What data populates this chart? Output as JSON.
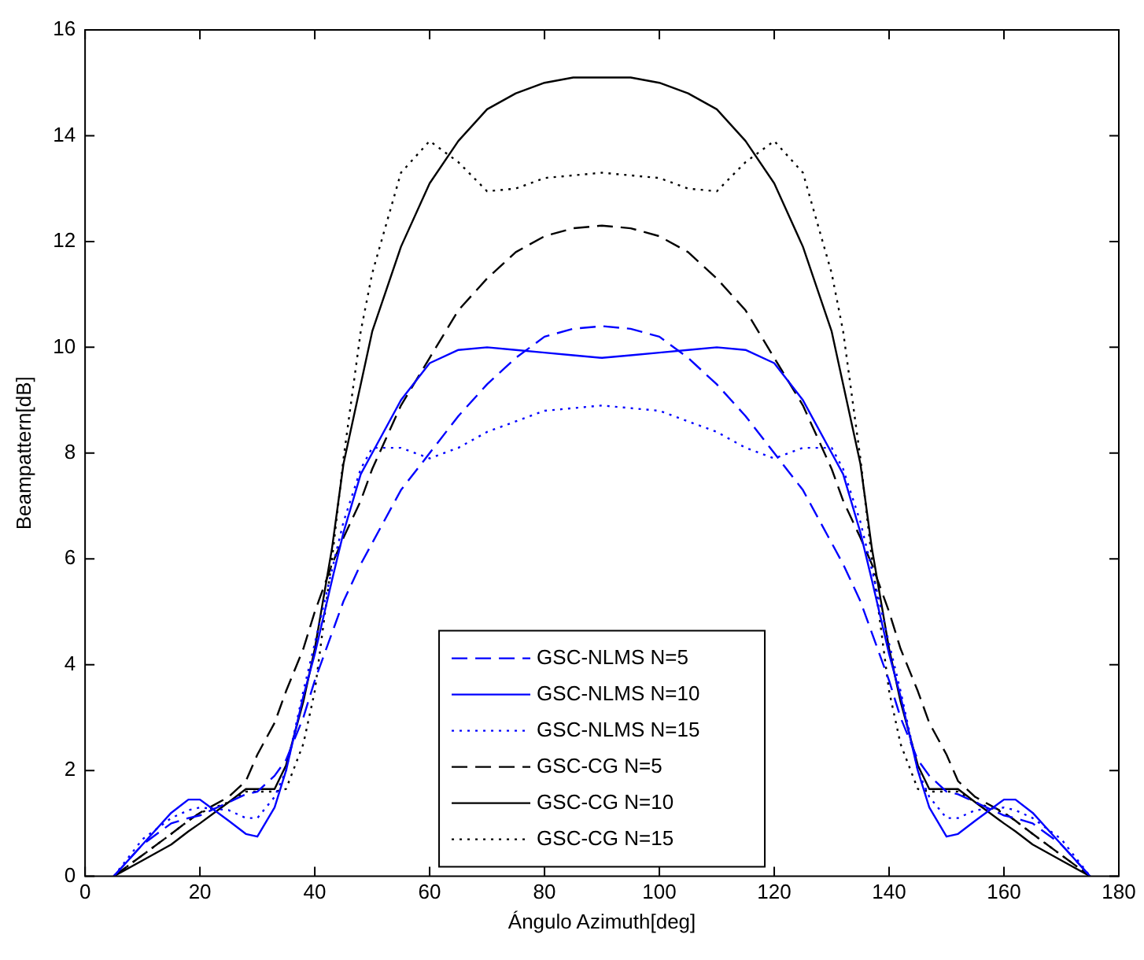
{
  "chart_data": {
    "type": "line",
    "xlabel": "Ángulo Azimuth[deg]",
    "ylabel": "Beampattern[dB]",
    "x": [
      5,
      10,
      15,
      18,
      20,
      25,
      28,
      30,
      33,
      35,
      38,
      40,
      43,
      45,
      48,
      50,
      55,
      60,
      65,
      70,
      75,
      80,
      85,
      90,
      95,
      100,
      105,
      110,
      115,
      120,
      125,
      130,
      132,
      135,
      137,
      140,
      142,
      145,
      147,
      150,
      152,
      155,
      160,
      162,
      165,
      170,
      175
    ],
    "series": [
      {
        "name": "GSC-NLMS N=5",
        "color": "#0000ff",
        "line_style": "dashed",
        "values": [
          0,
          0.6,
          1.0,
          1.1,
          1.15,
          1.4,
          1.55,
          1.6,
          1.9,
          2.2,
          3.0,
          3.7,
          4.6,
          5.2,
          5.9,
          6.3,
          7.3,
          8.0,
          8.7,
          9.3,
          9.8,
          10.2,
          10.35,
          10.4,
          10.35,
          10.2,
          9.8,
          9.3,
          8.7,
          8.0,
          7.3,
          6.3,
          5.9,
          5.2,
          4.6,
          3.7,
          3.0,
          2.2,
          1.9,
          1.6,
          1.55,
          1.4,
          1.15,
          1.1,
          1.0,
          0.6,
          0
        ]
      },
      {
        "name": "GSC-NLMS N=10",
        "color": "#0000ff",
        "line_style": "solid",
        "values": [
          0,
          0.6,
          1.2,
          1.45,
          1.45,
          1.05,
          0.8,
          0.75,
          1.3,
          2.0,
          3.4,
          4.2,
          5.6,
          6.5,
          7.6,
          8.0,
          9.0,
          9.7,
          9.95,
          10.0,
          9.95,
          9.9,
          9.85,
          9.8,
          9.85,
          9.9,
          9.95,
          10.0,
          9.95,
          9.7,
          9.0,
          8.0,
          7.6,
          6.5,
          5.6,
          4.2,
          3.4,
          2.0,
          1.3,
          0.75,
          0.8,
          1.05,
          1.45,
          1.45,
          1.2,
          0.6,
          0
        ]
      },
      {
        "name": "GSC-NLMS N=15",
        "color": "#0000ff",
        "line_style": "dotted",
        "values": [
          0,
          0.7,
          1.1,
          1.25,
          1.3,
          1.25,
          1.1,
          1.1,
          1.5,
          2.0,
          3.5,
          4.4,
          5.8,
          6.7,
          7.7,
          8.1,
          8.1,
          7.9,
          8.1,
          8.4,
          8.6,
          8.8,
          8.85,
          8.9,
          8.85,
          8.8,
          8.6,
          8.4,
          8.1,
          7.9,
          8.1,
          8.1,
          7.7,
          6.7,
          5.8,
          4.4,
          3.5,
          2.0,
          1.5,
          1.1,
          1.1,
          1.25,
          1.3,
          1.25,
          1.1,
          0.7,
          0
        ]
      },
      {
        "name": "GSC-CG N=5",
        "color": "#000000",
        "line_style": "dashed",
        "values": [
          0,
          0.4,
          0.8,
          1.05,
          1.2,
          1.5,
          1.8,
          2.3,
          2.9,
          3.5,
          4.3,
          5.0,
          5.9,
          6.4,
          7.1,
          7.7,
          8.9,
          9.8,
          10.7,
          11.3,
          11.8,
          12.1,
          12.25,
          12.3,
          12.25,
          12.1,
          11.8,
          11.3,
          10.7,
          9.8,
          8.9,
          7.7,
          7.1,
          6.4,
          5.9,
          5.0,
          4.3,
          3.5,
          2.9,
          2.3,
          1.8,
          1.5,
          1.2,
          1.05,
          0.8,
          0.4,
          0
        ]
      },
      {
        "name": "GSC-CG N=10",
        "color": "#000000",
        "line_style": "solid",
        "values": [
          0,
          0.3,
          0.6,
          0.85,
          1.0,
          1.4,
          1.65,
          1.65,
          1.65,
          2.1,
          3.3,
          4.3,
          6.2,
          7.8,
          9.3,
          10.3,
          11.9,
          13.1,
          13.9,
          14.5,
          14.8,
          15.0,
          15.1,
          15.1,
          15.1,
          15.0,
          14.8,
          14.5,
          13.9,
          13.1,
          11.9,
          10.3,
          9.3,
          7.8,
          6.2,
          4.3,
          3.3,
          2.1,
          1.65,
          1.65,
          1.65,
          1.4,
          1.0,
          0.85,
          0.6,
          0.3,
          0
        ]
      },
      {
        "name": "GSC-CG N=15",
        "color": "#000000",
        "line_style": "dotted",
        "values": [
          0,
          0.4,
          0.8,
          1.05,
          1.2,
          1.4,
          1.6,
          1.6,
          1.6,
          1.65,
          2.5,
          3.5,
          6.0,
          7.9,
          10.3,
          11.4,
          13.3,
          13.9,
          13.5,
          12.95,
          13.0,
          13.2,
          13.25,
          13.3,
          13.25,
          13.2,
          13.0,
          12.95,
          13.5,
          13.9,
          13.3,
          11.4,
          10.3,
          7.9,
          6.0,
          3.5,
          2.5,
          1.65,
          1.6,
          1.6,
          1.6,
          1.4,
          1.2,
          1.05,
          0.8,
          0.4,
          0
        ]
      }
    ],
    "xlim": [
      0,
      180
    ],
    "xticks": [
      0,
      20,
      40,
      60,
      80,
      100,
      120,
      140,
      160,
      180
    ],
    "ylim": [
      0,
      16
    ],
    "yticks": [
      0,
      2,
      4,
      6,
      8,
      10,
      12,
      14,
      16
    ],
    "grid": false,
    "legend": "bottom",
    "marker": "none"
  }
}
